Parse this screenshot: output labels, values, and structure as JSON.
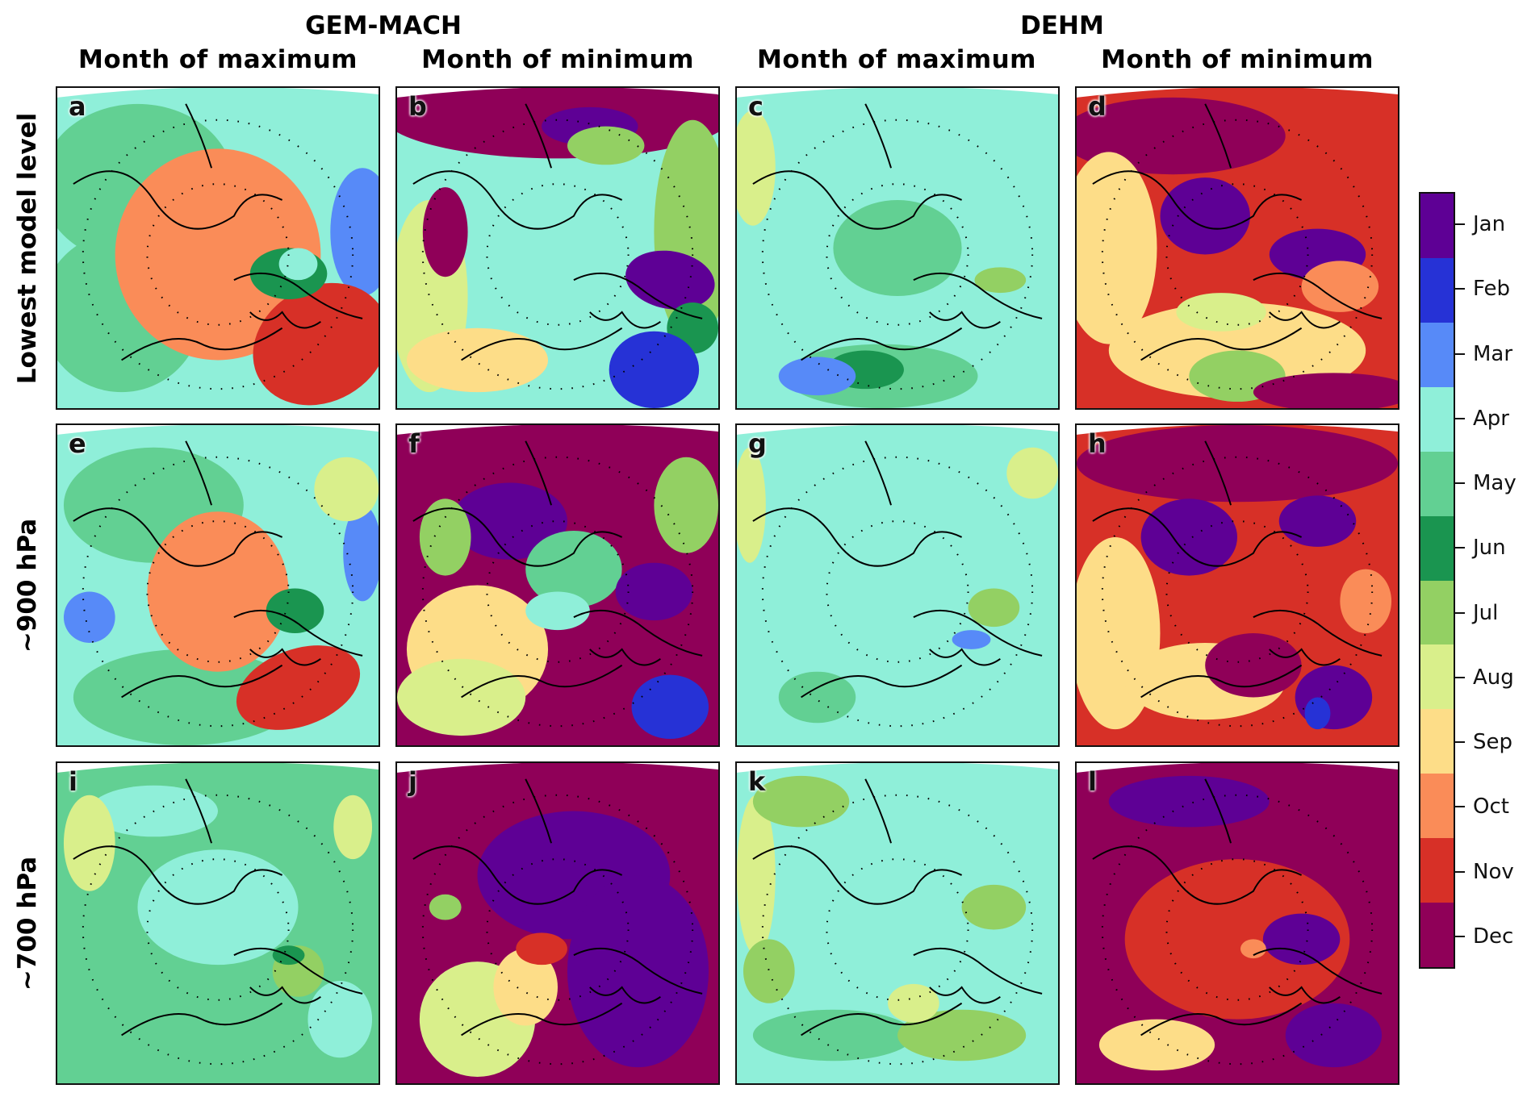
{
  "models": [
    {
      "name": "GEM-MACH"
    },
    {
      "name": "DEHM"
    }
  ],
  "columns": [
    {
      "title": "Month of maximum"
    },
    {
      "title": "Month of minimum"
    },
    {
      "title": "Month of maximum"
    },
    {
      "title": "Month of minimum"
    }
  ],
  "rows": [
    {
      "title": "Lowest model level"
    },
    {
      "title": "~900 hPa"
    },
    {
      "title": "~700 hPa"
    }
  ],
  "panels": [
    {
      "letter": "a"
    },
    {
      "letter": "b"
    },
    {
      "letter": "c"
    },
    {
      "letter": "d"
    },
    {
      "letter": "e"
    },
    {
      "letter": "f"
    },
    {
      "letter": "g"
    },
    {
      "letter": "h"
    },
    {
      "letter": "i"
    },
    {
      "letter": "j"
    },
    {
      "letter": "k"
    },
    {
      "letter": "l"
    }
  ],
  "colorbar": {
    "months": [
      {
        "label": "Jan",
        "color": "#5e0095"
      },
      {
        "label": "Feb",
        "color": "#2632d6"
      },
      {
        "label": "Mar",
        "color": "#578af8"
      },
      {
        "label": "Apr",
        "color": "#8fefd9"
      },
      {
        "label": "May",
        "color": "#62d093"
      },
      {
        "label": "Jun",
        "color": "#1a9550"
      },
      {
        "label": "Jul",
        "color": "#93d063"
      },
      {
        "label": "Aug",
        "color": "#d9ef8b"
      },
      {
        "label": "Sep",
        "color": "#fddd88"
      },
      {
        "label": "Oct",
        "color": "#fa8c58"
      },
      {
        "label": "Nov",
        "color": "#d73027"
      },
      {
        "label": "Dec",
        "color": "#8f0058"
      }
    ]
  }
}
